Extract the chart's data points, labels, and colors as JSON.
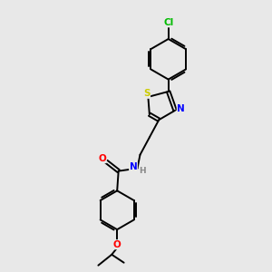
{
  "background_color": "#e8e8e8",
  "bond_color": "#000000",
  "atom_colors": {
    "S": "#cccc00",
    "N": "#0000ff",
    "O_carbonyl": "#ff0000",
    "O_ether": "#ff0000",
    "Cl": "#00bb00",
    "H": "#888888",
    "C": "#000000"
  },
  "figsize": [
    3.0,
    3.0
  ],
  "dpi": 100
}
